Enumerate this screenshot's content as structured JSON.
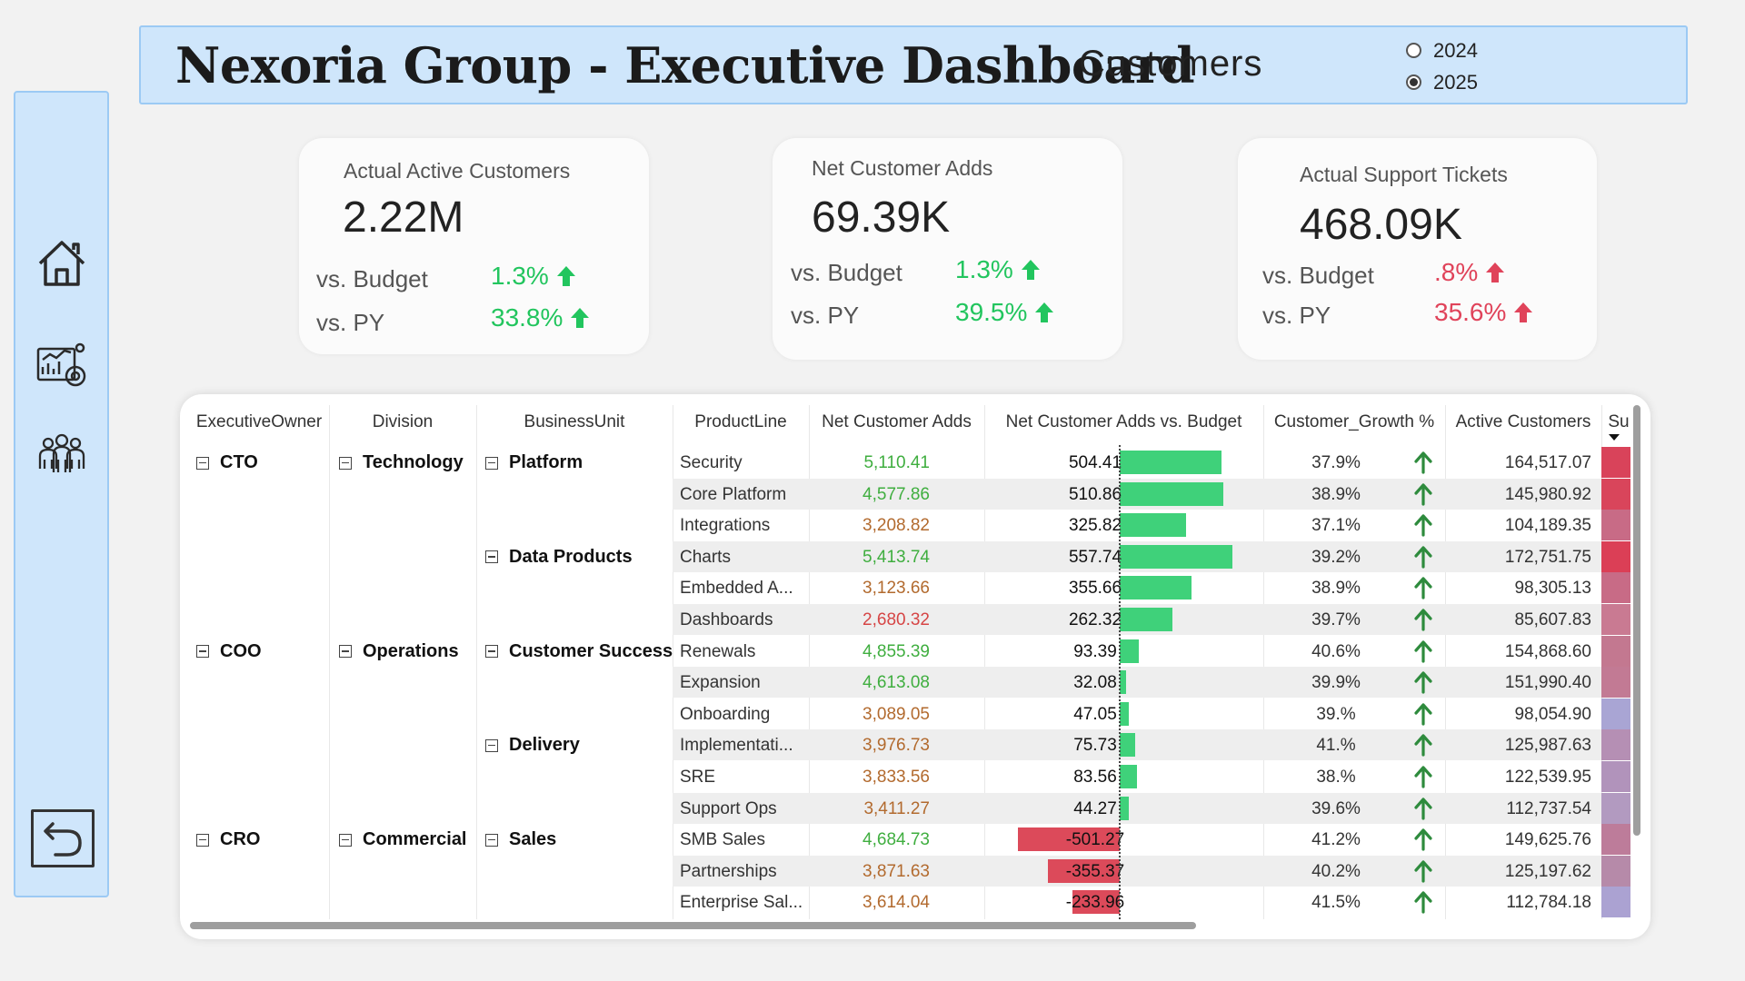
{
  "header": {
    "title": "Nexoria Group - Executive Dashboard",
    "subtitle": "Customers",
    "years": [
      {
        "label": "2024",
        "selected": false
      },
      {
        "label": "2025",
        "selected": true
      }
    ]
  },
  "sidebar": {
    "items": [
      {
        "icon": "home-icon"
      },
      {
        "icon": "analytics-chart-icon"
      },
      {
        "icon": "people-group-icon"
      }
    ],
    "back_icon": "back-arrow-icon"
  },
  "kpis": [
    {
      "title": "Actual Active Customers",
      "value": "2.22M",
      "budget_label": "vs. Budget",
      "budget_pct": "1.3%",
      "budget_status": "good",
      "py_label": "vs. PY",
      "py_pct": "33.8%",
      "py_status": "good"
    },
    {
      "title": "Net Customer Adds",
      "value": "69.39K",
      "budget_label": "vs. Budget",
      "budget_pct": "1.3%",
      "budget_status": "good",
      "py_label": "vs. PY",
      "py_pct": "39.5%",
      "py_status": "good"
    },
    {
      "title": "Actual Support Tickets",
      "value": "468.09K",
      "budget_label": "vs. Budget",
      "budget_pct": ".8%",
      "budget_status": "bad",
      "py_label": "vs. PY",
      "py_pct": "35.6%",
      "py_status": "bad"
    }
  ],
  "colors": {
    "good": "#22c55e",
    "bad": "#e0435a",
    "bar_positive": "#3fd17a",
    "bar_negative": "#dc4a5a",
    "value_green": "#3fae3f",
    "value_brown": "#b26a2e",
    "value_red": "#d64545",
    "growth_arrow": "#2e8b3d",
    "header_bg": "#cfe6fb"
  },
  "table": {
    "columns": [
      "ExecutiveOwner",
      "Division",
      "BusinessUnit",
      "ProductLine",
      "Net Customer Adds",
      "Net Customer Adds vs. Budget",
      "Customer_Growth %",
      "Active Customers",
      "Su"
    ],
    "groups": {
      "owners": [
        {
          "label": "CTO",
          "row": 0
        },
        {
          "label": "COO",
          "row": 6
        },
        {
          "label": "CRO",
          "row": 12
        }
      ],
      "divisions": [
        {
          "label": "Technology",
          "row": 0
        },
        {
          "label": "Operations",
          "row": 6
        },
        {
          "label": "Commercial",
          "row": 12
        }
      ],
      "units": [
        {
          "label": "Platform",
          "row": 0
        },
        {
          "label": "Data Products",
          "row": 3
        },
        {
          "label": "Customer Success",
          "row": 6
        },
        {
          "label": "Delivery",
          "row": 9
        },
        {
          "label": "Sales",
          "row": 12
        }
      ]
    },
    "rows": [
      {
        "product": "Security",
        "adds": "5,110.41",
        "adds_tone": "green",
        "vs_budget_text": "504.41",
        "vs_budget": 504.41,
        "growth": "37.9%",
        "active": "164,517.07",
        "heat": "#d9435a"
      },
      {
        "product": "Core Platform",
        "adds": "4,577.86",
        "adds_tone": "green",
        "vs_budget_text": "510.86",
        "vs_budget": 510.86,
        "growth": "38.9%",
        "active": "145,980.92",
        "heat": "#d9455b"
      },
      {
        "product": "Integrations",
        "adds": "3,208.82",
        "adds_tone": "brown",
        "vs_budget_text": "325.82",
        "vs_budget": 325.82,
        "growth": "37.1%",
        "active": "104,189.35",
        "heat": "#c86b86"
      },
      {
        "product": "Charts",
        "adds": "5,413.74",
        "adds_tone": "green",
        "vs_budget_text": "557.74",
        "vs_budget": 557.74,
        "growth": "39.2%",
        "active": "172,751.75",
        "heat": "#db3f56"
      },
      {
        "product": "Embedded A...",
        "adds": "3,123.66",
        "adds_tone": "brown",
        "vs_budget_text": "355.66",
        "vs_budget": 355.66,
        "growth": "38.9%",
        "active": "98,305.13",
        "heat": "#c86b86"
      },
      {
        "product": "Dashboards",
        "adds": "2,680.32",
        "adds_tone": "red",
        "vs_budget_text": "262.32",
        "vs_budget": 262.32,
        "growth": "39.7%",
        "active": "85,607.83",
        "heat": "#c97a92"
      },
      {
        "product": "Renewals",
        "adds": "4,855.39",
        "adds_tone": "green",
        "vs_budget_text": "93.39",
        "vs_budget": 93.39,
        "growth": "40.6%",
        "active": "154,868.60",
        "heat": "#c37890"
      },
      {
        "product": "Expansion",
        "adds": "4,613.08",
        "adds_tone": "green",
        "vs_budget_text": "32.08",
        "vs_budget": 32.08,
        "growth": "39.9%",
        "active": "151,990.40",
        "heat": "#c27a94"
      },
      {
        "product": "Onboarding",
        "adds": "3,089.05",
        "adds_tone": "brown",
        "vs_budget_text": "47.05",
        "vs_budget": 47.05,
        "growth": "39.%",
        "active": "98,054.90",
        "heat": "#a9a5d4"
      },
      {
        "product": "Implementati...",
        "adds": "3,976.73",
        "adds_tone": "brown",
        "vs_budget_text": "75.73",
        "vs_budget": 75.73,
        "growth": "41.%",
        "active": "125,987.63",
        "heat": "#b58fb4"
      },
      {
        "product": "SRE",
        "adds": "3,833.56",
        "adds_tone": "brown",
        "vs_budget_text": "83.56",
        "vs_budget": 83.56,
        "growth": "38.%",
        "active": "122,539.95",
        "heat": "#b193bb"
      },
      {
        "product": "Support Ops",
        "adds": "3,411.27",
        "adds_tone": "brown",
        "vs_budget_text": "44.27",
        "vs_budget": 44.27,
        "growth": "39.6%",
        "active": "112,737.54",
        "heat": "#b29ac0"
      },
      {
        "product": "SMB Sales",
        "adds": "4,684.73",
        "adds_tone": "green",
        "vs_budget_text": "-501.27",
        "vs_budget": -501.27,
        "growth": "41.2%",
        "active": "149,625.76",
        "heat": "#bd7c9a"
      },
      {
        "product": "Partnerships",
        "adds": "3,871.63",
        "adds_tone": "brown",
        "vs_budget_text": "-355.37",
        "vs_budget": -355.37,
        "growth": "40.2%",
        "active": "125,197.62",
        "heat": "#b68aa9"
      },
      {
        "product": "Enterprise Sal...",
        "adds": "3,614.04",
        "adds_tone": "brown",
        "vs_budget_text": "-233.96",
        "vs_budget": -233.96,
        "growth": "41.5%",
        "active": "112,784.18",
        "heat": "#aba2d2"
      }
    ]
  }
}
